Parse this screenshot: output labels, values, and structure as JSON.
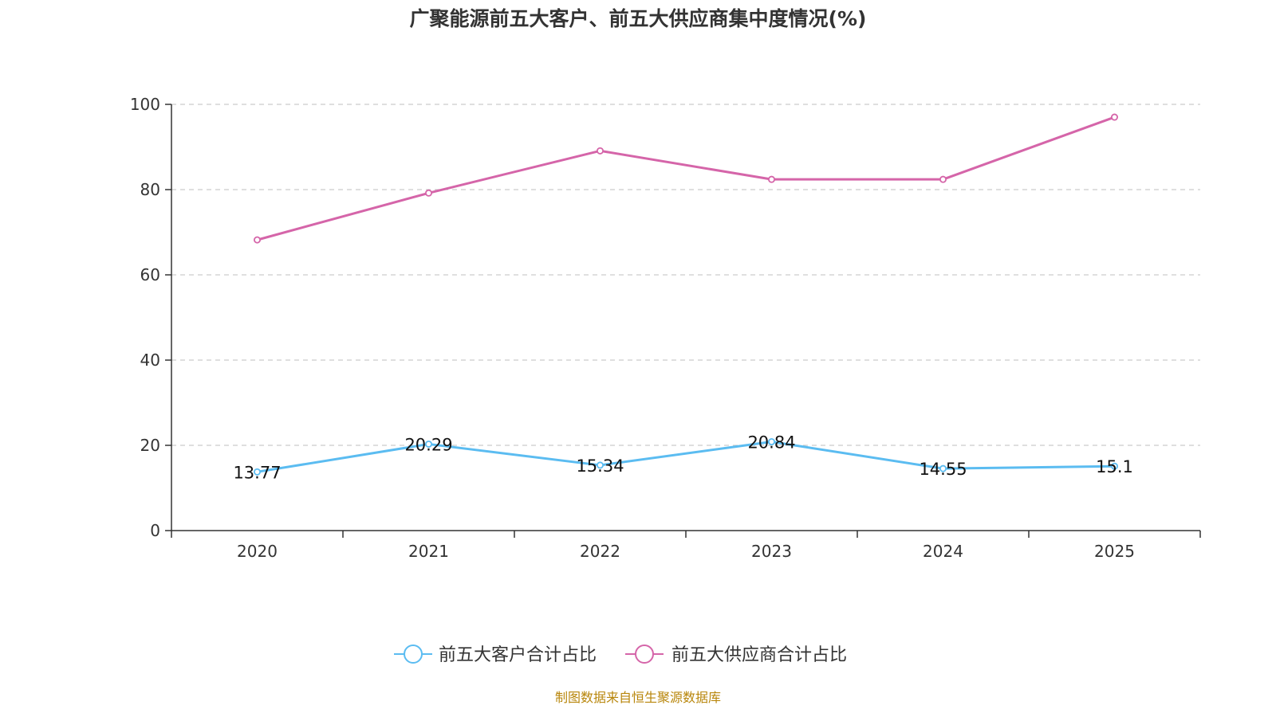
{
  "chart_data": {
    "type": "line",
    "title": "广聚能源前五大客户、前五大供应商集中度情况(%)",
    "categories": [
      "2020",
      "2021",
      "2022",
      "2023",
      "2024",
      "2025"
    ],
    "ylim": [
      0,
      100
    ],
    "yticks": [
      "0",
      "20",
      "40",
      "60",
      "80",
      "100"
    ],
    "ytick_values": [
      0,
      20,
      40,
      60,
      80,
      100
    ],
    "grid": true,
    "legend_position": "bottom-center",
    "series": [
      {
        "name": "前五大客户合计占比",
        "color": "#5bbcf1",
        "values": [
          13.77,
          20.29,
          15.34,
          20.84,
          14.55,
          15.1
        ],
        "labels": [
          "13.77",
          "20.29",
          "15.34",
          "20.84",
          "14.55",
          "15.1"
        ],
        "show_labels": true
      },
      {
        "name": "前五大供应商合计占比",
        "color": "#d565a9",
        "values": [
          68.2,
          79.2,
          89.1,
          82.4,
          82.4,
          97.0
        ],
        "show_labels": false
      }
    ]
  },
  "footer": {
    "source": "制图数据来自恒生聚源数据库"
  },
  "colors": {
    "axis": "#333333",
    "grid": "#cccccc",
    "source": "#b8860b"
  }
}
